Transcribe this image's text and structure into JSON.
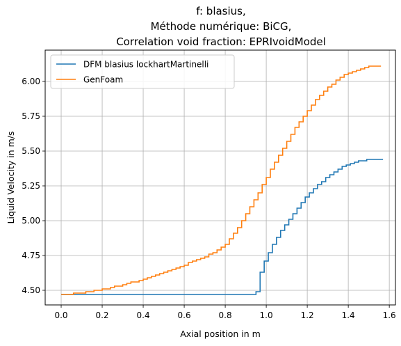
{
  "chart_data": {
    "type": "line",
    "title_lines": [
      "f: blasius,",
      "Méthode numérique: BiCG,",
      "Correlation void fraction: EPRIvoidModel"
    ],
    "xlabel": "Axial position in m",
    "ylabel": "Liquid Velocity in m/s",
    "xlim": [
      -0.078,
      1.63
    ],
    "ylim": [
      4.395,
      6.225
    ],
    "xticks": [
      0.0,
      0.2,
      0.4,
      0.6,
      0.8,
      1.0,
      1.2,
      1.4,
      1.6
    ],
    "xtick_labels": [
      "0.0",
      "0.2",
      "0.4",
      "0.6",
      "0.8",
      "1.0",
      "1.2",
      "1.4",
      "1.6"
    ],
    "yticks": [
      4.5,
      4.75,
      5.0,
      5.25,
      5.5,
      5.75,
      6.0
    ],
    "ytick_labels": [
      "4.50",
      "4.75",
      "5.00",
      "5.25",
      "5.50",
      "5.75",
      "6.00"
    ],
    "grid": true,
    "legend_position": "top-left",
    "step_width": 0.0194,
    "series": [
      {
        "name": "DFM blasius lockhartMartinelli",
        "color": "#1f77b4",
        "x": [
          0.0,
          0.95,
          0.97,
          0.99,
          1.01,
          1.03,
          1.05,
          1.07,
          1.09,
          1.11,
          1.13,
          1.15,
          1.17,
          1.19,
          1.21,
          1.23,
          1.25,
          1.27,
          1.29,
          1.31,
          1.33,
          1.35,
          1.37,
          1.39,
          1.41,
          1.43,
          1.45,
          1.47,
          1.49,
          1.51,
          1.53,
          1.55
        ],
        "y": [
          4.47,
          4.49,
          4.63,
          4.71,
          4.77,
          4.83,
          4.88,
          4.93,
          4.97,
          5.01,
          5.05,
          5.09,
          5.13,
          5.17,
          5.2,
          5.23,
          5.26,
          5.28,
          5.31,
          5.33,
          5.35,
          5.37,
          5.39,
          5.4,
          5.41,
          5.42,
          5.43,
          5.43,
          5.44,
          5.44,
          5.44,
          5.44
        ]
      },
      {
        "name": "GenFoam",
        "color": "#ff7f0e",
        "x": [
          0.0,
          0.02,
          0.04,
          0.06,
          0.08,
          0.1,
          0.12,
          0.14,
          0.16,
          0.18,
          0.2,
          0.22,
          0.24,
          0.26,
          0.28,
          0.3,
          0.32,
          0.34,
          0.36,
          0.38,
          0.4,
          0.42,
          0.44,
          0.46,
          0.48,
          0.5,
          0.52,
          0.54,
          0.56,
          0.58,
          0.6,
          0.62,
          0.64,
          0.66,
          0.68,
          0.7,
          0.72,
          0.74,
          0.76,
          0.78,
          0.8,
          0.82,
          0.84,
          0.86,
          0.88,
          0.9,
          0.92,
          0.94,
          0.96,
          0.98,
          1.0,
          1.02,
          1.04,
          1.06,
          1.08,
          1.1,
          1.12,
          1.14,
          1.16,
          1.18,
          1.2,
          1.22,
          1.24,
          1.26,
          1.28,
          1.3,
          1.32,
          1.34,
          1.36,
          1.38,
          1.4,
          1.42,
          1.44,
          1.46,
          1.48,
          1.5,
          1.52,
          1.54
        ],
        "y": [
          4.47,
          4.47,
          4.47,
          4.48,
          4.48,
          4.48,
          4.49,
          4.49,
          4.5,
          4.5,
          4.51,
          4.51,
          4.52,
          4.53,
          4.53,
          4.54,
          4.55,
          4.56,
          4.56,
          4.57,
          4.58,
          4.59,
          4.6,
          4.61,
          4.62,
          4.63,
          4.64,
          4.65,
          4.66,
          4.67,
          4.68,
          4.7,
          4.71,
          4.72,
          4.73,
          4.74,
          4.76,
          4.77,
          4.79,
          4.81,
          4.83,
          4.87,
          4.91,
          4.95,
          5.0,
          5.05,
          5.1,
          5.15,
          5.2,
          5.26,
          5.31,
          5.37,
          5.42,
          5.47,
          5.52,
          5.57,
          5.62,
          5.67,
          5.71,
          5.75,
          5.79,
          5.83,
          5.87,
          5.9,
          5.93,
          5.96,
          5.98,
          6.01,
          6.03,
          6.05,
          6.06,
          6.07,
          6.08,
          6.09,
          6.1,
          6.11,
          6.11,
          6.11
        ]
      }
    ]
  }
}
